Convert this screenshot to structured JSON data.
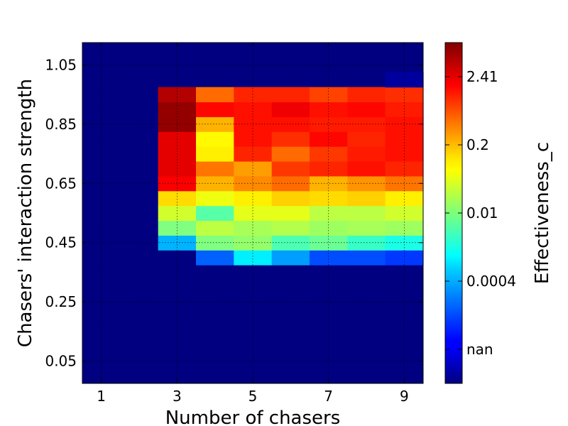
{
  "chart_data": {
    "type": "heatmap",
    "title": "",
    "xlabel": "Number of chasers",
    "ylabel": "Chasers' interaction strength",
    "colorbar_label": "Effectiveness_c",
    "x_ticks": [
      "1",
      "3",
      "5",
      "7",
      "9"
    ],
    "y_ticks": [
      "0.05",
      "0.25",
      "0.45",
      "0.65",
      "0.85",
      "1.05"
    ],
    "colorbar_ticks": [
      "2.41",
      "0.2",
      "0.01",
      "0.0004",
      "nan"
    ],
    "x_values": [
      1,
      2,
      3,
      4,
      5,
      6,
      7,
      8,
      9
    ],
    "y_values": [
      0.0,
      0.05,
      0.1,
      0.15,
      0.2,
      0.25,
      0.3,
      0.35,
      0.4,
      0.45,
      0.5,
      0.55,
      0.6,
      0.65,
      0.7,
      0.75,
      0.8,
      0.85,
      0.9,
      0.95,
      1.0,
      1.05,
      1.1
    ],
    "xlim": [
      0.5,
      9.5
    ],
    "ylim": [
      -0.025,
      1.125
    ],
    "colormap": "jet",
    "grid": true,
    "color_levels_note": "0 = nan (dark blue), 1 = max (dark red)",
    "cells": [
      {
        "y": 0.4,
        "x": [
          3,
          4,
          5,
          6,
          7,
          8,
          9
        ],
        "level": [
          0.0,
          0.22,
          0.36,
          0.28,
          0.2,
          0.2,
          0.18
        ]
      },
      {
        "y": 0.45,
        "x": [
          3,
          4,
          5,
          6,
          7,
          8,
          9
        ],
        "level": [
          0.3,
          0.5,
          0.52,
          0.45,
          0.48,
          0.43,
          0.4
        ]
      },
      {
        "y": 0.5,
        "x": [
          3,
          4,
          5,
          6,
          7,
          8,
          9
        ],
        "level": [
          0.5,
          0.56,
          0.54,
          0.55,
          0.53,
          0.54,
          0.53
        ]
      },
      {
        "y": 0.55,
        "x": [
          3,
          4,
          5,
          6,
          7,
          8,
          9
        ],
        "level": [
          0.58,
          0.46,
          0.6,
          0.6,
          0.56,
          0.56,
          0.58
        ]
      },
      {
        "y": 0.6,
        "x": [
          3,
          4,
          5,
          6,
          7,
          8,
          9
        ],
        "level": [
          0.66,
          0.61,
          0.64,
          0.67,
          0.66,
          0.67,
          0.64
        ]
      },
      {
        "y": 0.65,
        "x": [
          3,
          4,
          5,
          6,
          7,
          8,
          9
        ],
        "level": [
          0.88,
          0.7,
          0.74,
          0.77,
          0.7,
          0.73,
          0.76
        ]
      },
      {
        "y": 0.7,
        "x": [
          3,
          4,
          5,
          6,
          7,
          8,
          9
        ],
        "level": [
          0.9,
          0.76,
          0.72,
          0.82,
          0.84,
          0.86,
          0.84
        ]
      },
      {
        "y": 0.75,
        "x": [
          3,
          4,
          5,
          6,
          7,
          8,
          9
        ],
        "level": [
          0.9,
          0.64,
          0.84,
          0.77,
          0.82,
          0.85,
          0.86
        ]
      },
      {
        "y": 0.8,
        "x": [
          3,
          4,
          5,
          6,
          7,
          8,
          9
        ],
        "level": [
          0.9,
          0.63,
          0.86,
          0.83,
          0.87,
          0.84,
          0.86
        ]
      },
      {
        "y": 0.85,
        "x": [
          3,
          4,
          5,
          6,
          7,
          8,
          9
        ],
        "level": [
          0.98,
          0.7,
          0.86,
          0.86,
          0.85,
          0.85,
          0.86
        ]
      },
      {
        "y": 0.9,
        "x": [
          3,
          4,
          5,
          6,
          7,
          8,
          9
        ],
        "level": [
          0.98,
          0.87,
          0.86,
          0.89,
          0.86,
          0.87,
          0.85
        ]
      },
      {
        "y": 0.95,
        "x": [
          3,
          4,
          5,
          6,
          7,
          8,
          9
        ],
        "level": [
          0.95,
          0.77,
          0.84,
          0.84,
          0.81,
          0.84,
          0.83
        ]
      },
      {
        "y": 1.0,
        "x": [
          9
        ],
        "level": [
          0.03
        ]
      }
    ]
  }
}
